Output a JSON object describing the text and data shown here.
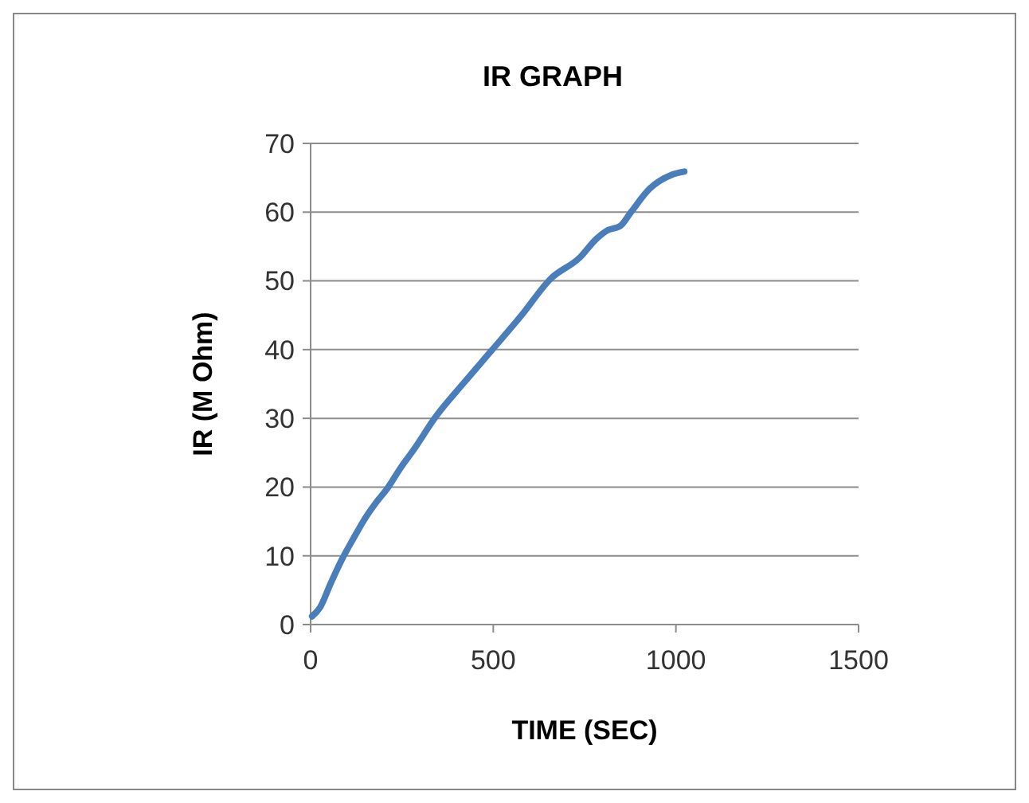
{
  "chart_data": {
    "type": "line",
    "title": "IR GRAPH",
    "xlabel": "TIME (SEC)",
    "ylabel": "IR (M Ohm)",
    "series": [
      {
        "color": "#4a7ebb",
        "x": [
          4,
          26,
          55,
          85,
          118,
          151,
          180,
          210,
          245,
          283,
          342,
          420,
          496,
          576,
          657,
          737,
          782,
          811,
          848,
          877,
          928,
          987,
          1023
        ],
        "values": [
          1.2,
          2.5,
          6,
          9.4,
          12.6,
          15.6,
          17.8,
          19.8,
          22.7,
          25.5,
          30.2,
          35.2,
          39.9,
          44.9,
          50.3,
          53.4,
          56.1,
          57.3,
          58.0,
          60.0,
          63.4,
          65.4,
          65.9
        ]
      }
    ],
    "xlim": [
      0,
      1500
    ],
    "xticks": [
      0,
      500,
      1000,
      1500
    ],
    "ylim": [
      0,
      70
    ],
    "yticks": [
      0,
      10,
      20,
      30,
      40,
      50,
      60,
      70
    ],
    "grid": "y",
    "marker": "none",
    "line_style": "solid"
  }
}
